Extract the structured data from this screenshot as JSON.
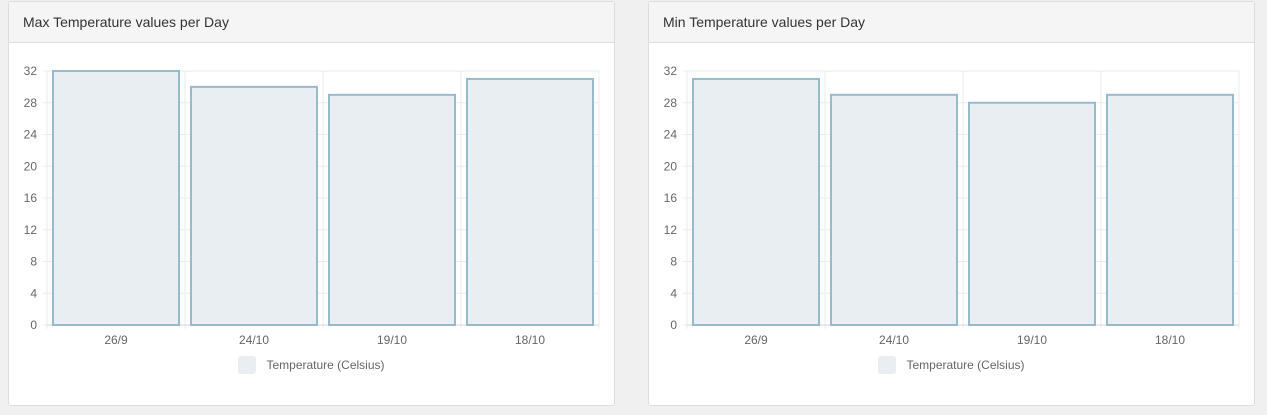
{
  "colors": {
    "bar_fill": "#e8eef2",
    "bar_stroke": "#97bbcd",
    "grid": "#ebebeb"
  },
  "chart_data": [
    {
      "type": "bar",
      "title": "Max Temperature values per Day",
      "categories": [
        "26/9",
        "24/10",
        "19/10",
        "18/10"
      ],
      "series": [
        {
          "name": "Temperature (Celsius)",
          "values": [
            32,
            30,
            29,
            31
          ]
        }
      ],
      "yticks": [
        0,
        4,
        8,
        12,
        16,
        20,
        24,
        28,
        32
      ],
      "ylim": [
        0,
        32
      ],
      "grid": true,
      "legend": "bottom-center"
    },
    {
      "type": "bar",
      "title": "Min Temperature values per Day",
      "categories": [
        "26/9",
        "24/10",
        "19/10",
        "18/10"
      ],
      "series": [
        {
          "name": "Temperature (Celsius)",
          "values": [
            31,
            29,
            28,
            29
          ]
        }
      ],
      "yticks": [
        0,
        4,
        8,
        12,
        16,
        20,
        24,
        28,
        32
      ],
      "ylim": [
        0,
        32
      ],
      "grid": true,
      "legend": "bottom-center"
    }
  ]
}
